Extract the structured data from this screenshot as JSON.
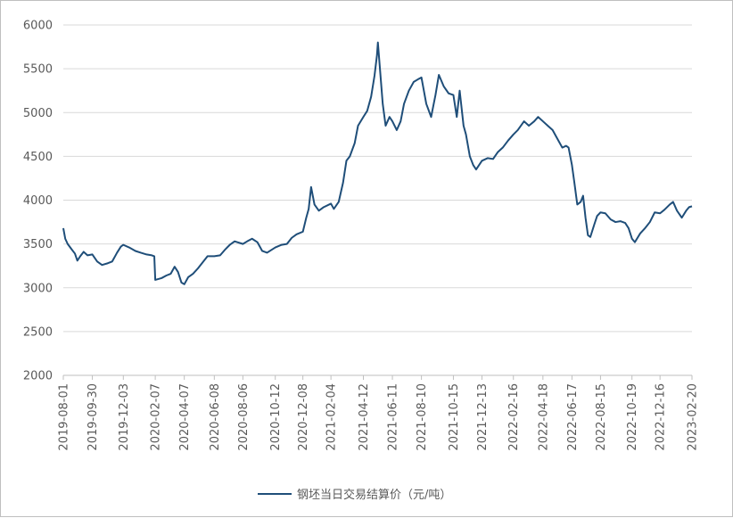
{
  "chart_data": {
    "type": "line",
    "title": "",
    "xlabel": "",
    "ylabel": "",
    "ylim": [
      2000,
      6000
    ],
    "yticks": [
      2000,
      2500,
      3000,
      3500,
      4000,
      4500,
      5000,
      5500,
      6000
    ],
    "grid": "horizontal",
    "legend_position": "bottom",
    "x_tick_labels": [
      "2019-08-01",
      "2019-09-30",
      "2019-12-03",
      "2020-02-07",
      "2020-04-07",
      "2020-06-08",
      "2020-08-06",
      "2020-10-12",
      "2020-12-08",
      "2021-02-04",
      "2021-04-12",
      "2021-06-11",
      "2021-08-10",
      "2021-10-15",
      "2021-12-13",
      "2022-02-16",
      "2022-04-18",
      "2022-06-17",
      "2022-08-15",
      "2022-10-19",
      "2022-12-16",
      "2023-02-20"
    ],
    "series": [
      {
        "name": "钢坯当日交易结算价（元/吨）",
        "color": "#1f4e79",
        "points": [
          [
            "2019-08-01",
            3680
          ],
          [
            "2019-08-05",
            3560
          ],
          [
            "2019-08-10",
            3500
          ],
          [
            "2019-08-18",
            3440
          ],
          [
            "2019-08-25",
            3390
          ],
          [
            "2019-08-30",
            3310
          ],
          [
            "2019-09-05",
            3360
          ],
          [
            "2019-09-12",
            3410
          ],
          [
            "2019-09-20",
            3370
          ],
          [
            "2019-09-30",
            3380
          ],
          [
            "2019-10-10",
            3300
          ],
          [
            "2019-10-20",
            3260
          ],
          [
            "2019-11-01",
            3280
          ],
          [
            "2019-11-10",
            3300
          ],
          [
            "2019-11-20",
            3400
          ],
          [
            "2019-11-28",
            3470
          ],
          [
            "2019-12-03",
            3490
          ],
          [
            "2019-12-15",
            3460
          ],
          [
            "2019-12-28",
            3420
          ],
          [
            "2020-01-08",
            3400
          ],
          [
            "2020-01-20",
            3380
          ],
          [
            "2020-01-31",
            3370
          ],
          [
            "2020-02-05",
            3360
          ],
          [
            "2020-02-07",
            3090
          ],
          [
            "2020-02-20",
            3110
          ],
          [
            "2020-03-01",
            3140
          ],
          [
            "2020-03-10",
            3160
          ],
          [
            "2020-03-18",
            3240
          ],
          [
            "2020-03-25",
            3180
          ],
          [
            "2020-04-01",
            3060
          ],
          [
            "2020-04-07",
            3040
          ],
          [
            "2020-04-15",
            3120
          ],
          [
            "2020-04-25",
            3160
          ],
          [
            "2020-05-05",
            3220
          ],
          [
            "2020-05-15",
            3290
          ],
          [
            "2020-05-25",
            3360
          ],
          [
            "2020-06-08",
            3360
          ],
          [
            "2020-06-20",
            3370
          ],
          [
            "2020-07-01",
            3440
          ],
          [
            "2020-07-10",
            3490
          ],
          [
            "2020-07-20",
            3530
          ],
          [
            "2020-08-06",
            3500
          ],
          [
            "2020-08-15",
            3530
          ],
          [
            "2020-08-25",
            3560
          ],
          [
            "2020-09-05",
            3520
          ],
          [
            "2020-09-15",
            3420
          ],
          [
            "2020-09-25",
            3400
          ],
          [
            "2020-10-12",
            3460
          ],
          [
            "2020-10-25",
            3490
          ],
          [
            "2020-11-05",
            3500
          ],
          [
            "2020-11-15",
            3570
          ],
          [
            "2020-11-25",
            3610
          ],
          [
            "2020-12-08",
            3640
          ],
          [
            "2020-12-15",
            3800
          ],
          [
            "2020-12-20",
            3900
          ],
          [
            "2020-12-25",
            4150
          ],
          [
            "2021-01-01",
            3950
          ],
          [
            "2021-01-10",
            3880
          ],
          [
            "2021-01-20",
            3920
          ],
          [
            "2021-02-04",
            3960
          ],
          [
            "2021-02-10",
            3900
          ],
          [
            "2021-02-20",
            3980
          ],
          [
            "2021-03-01",
            4200
          ],
          [
            "2021-03-08",
            4450
          ],
          [
            "2021-03-15",
            4500
          ],
          [
            "2021-03-25",
            4650
          ],
          [
            "2021-04-01",
            4850
          ],
          [
            "2021-04-12",
            4950
          ],
          [
            "2021-04-20",
            5020
          ],
          [
            "2021-04-28",
            5180
          ],
          [
            "2021-05-05",
            5420
          ],
          [
            "2021-05-10",
            5650
          ],
          [
            "2021-05-12",
            5800
          ],
          [
            "2021-05-17",
            5450
          ],
          [
            "2021-05-22",
            5100
          ],
          [
            "2021-05-28",
            4850
          ],
          [
            "2021-06-05",
            4950
          ],
          [
            "2021-06-11",
            4900
          ],
          [
            "2021-06-20",
            4800
          ],
          [
            "2021-06-28",
            4900
          ],
          [
            "2021-07-05",
            5100
          ],
          [
            "2021-07-15",
            5250
          ],
          [
            "2021-07-25",
            5350
          ],
          [
            "2021-08-03",
            5380
          ],
          [
            "2021-08-10",
            5400
          ],
          [
            "2021-08-20",
            5100
          ],
          [
            "2021-08-30",
            4950
          ],
          [
            "2021-09-08",
            5200
          ],
          [
            "2021-09-15",
            5430
          ],
          [
            "2021-09-25",
            5300
          ],
          [
            "2021-10-05",
            5220
          ],
          [
            "2021-10-15",
            5200
          ],
          [
            "2021-10-22",
            4950
          ],
          [
            "2021-10-28",
            5250
          ],
          [
            "2021-11-05",
            4850
          ],
          [
            "2021-11-10",
            4750
          ],
          [
            "2021-11-18",
            4500
          ],
          [
            "2021-11-25",
            4400
          ],
          [
            "2021-12-01",
            4350
          ],
          [
            "2021-12-13",
            4450
          ],
          [
            "2021-12-25",
            4480
          ],
          [
            "2022-01-05",
            4470
          ],
          [
            "2022-01-15",
            4550
          ],
          [
            "2022-01-25",
            4600
          ],
          [
            "2022-02-05",
            4680
          ],
          [
            "2022-02-16",
            4750
          ],
          [
            "2022-02-25",
            4800
          ],
          [
            "2022-03-10",
            4900
          ],
          [
            "2022-03-20",
            4850
          ],
          [
            "2022-03-31",
            4900
          ],
          [
            "2022-04-08",
            4950
          ],
          [
            "2022-04-18",
            4900
          ],
          [
            "2022-04-28",
            4850
          ],
          [
            "2022-05-08",
            4800
          ],
          [
            "2022-05-18",
            4700
          ],
          [
            "2022-05-28",
            4600
          ],
          [
            "2022-06-05",
            4620
          ],
          [
            "2022-06-10",
            4600
          ],
          [
            "2022-06-17",
            4400
          ],
          [
            "2022-06-22",
            4200
          ],
          [
            "2022-06-28",
            3950
          ],
          [
            "2022-07-05",
            3980
          ],
          [
            "2022-07-10",
            4050
          ],
          [
            "2022-07-15",
            3800
          ],
          [
            "2022-07-20",
            3600
          ],
          [
            "2022-07-25",
            3580
          ],
          [
            "2022-08-02",
            3720
          ],
          [
            "2022-08-08",
            3820
          ],
          [
            "2022-08-15",
            3860
          ],
          [
            "2022-08-25",
            3850
          ],
          [
            "2022-09-05",
            3780
          ],
          [
            "2022-09-15",
            3750
          ],
          [
            "2022-09-25",
            3760
          ],
          [
            "2022-10-05",
            3740
          ],
          [
            "2022-10-12",
            3680
          ],
          [
            "2022-10-19",
            3560
          ],
          [
            "2022-10-25",
            3520
          ],
          [
            "2022-11-05",
            3620
          ],
          [
            "2022-11-15",
            3680
          ],
          [
            "2022-11-25",
            3750
          ],
          [
            "2022-12-05",
            3860
          ],
          [
            "2022-12-16",
            3850
          ],
          [
            "2022-12-25",
            3890
          ],
          [
            "2023-01-05",
            3950
          ],
          [
            "2023-01-12",
            3980
          ],
          [
            "2023-01-20",
            3880
          ],
          [
            "2023-01-30",
            3800
          ],
          [
            "2023-02-08",
            3880
          ],
          [
            "2023-02-14",
            3920
          ],
          [
            "2023-02-20",
            3930
          ]
        ]
      }
    ]
  }
}
